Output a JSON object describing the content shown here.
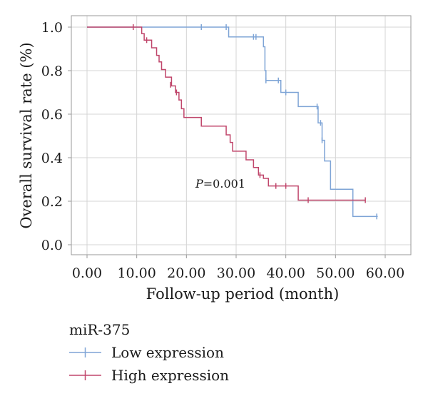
{
  "chart_data": {
    "type": "line",
    "xlabel": "Follow-up period (month)",
    "ylabel": "Overall survival rate (%)",
    "xlim": [
      0,
      60
    ],
    "ylim": [
      0,
      1.0
    ],
    "x_ticks": [
      "0.00",
      "10.00",
      "20.00",
      "30.00",
      "40.00",
      "50.00",
      "60.00"
    ],
    "y_ticks": [
      "0.0",
      "0.2",
      "0.4",
      "0.6",
      "0.8",
      "1.0"
    ],
    "grid": true,
    "annotation": {
      "p_label": "P",
      "p_value": "=0.001"
    },
    "legend": {
      "title": "miR-375",
      "placement": "bottom-left"
    },
    "series": [
      {
        "name": "Low expression",
        "color": "#7ea4d6",
        "steps": [
          [
            0,
            1.0
          ],
          [
            28.5,
            0.955
          ],
          [
            35.5,
            0.91
          ],
          [
            35.8,
            0.8
          ],
          [
            36,
            0.755
          ],
          [
            39,
            0.7
          ],
          [
            42.5,
            0.635
          ],
          [
            46.5,
            0.56
          ],
          [
            47.3,
            0.48
          ],
          [
            47.8,
            0.385
          ],
          [
            49,
            0.255
          ],
          [
            53.5,
            0.13
          ],
          [
            58.5,
            0.13
          ]
        ],
        "censored": [
          [
            23,
            1.0
          ],
          [
            28,
            1.0
          ],
          [
            33.5,
            0.955
          ],
          [
            34,
            0.955
          ],
          [
            36,
            0.755
          ],
          [
            38.5,
            0.755
          ],
          [
            40,
            0.7
          ],
          [
            46.3,
            0.635
          ],
          [
            47,
            0.56
          ],
          [
            47.3,
            0.48
          ],
          [
            58.3,
            0.13
          ]
        ]
      },
      {
        "name": "High expression",
        "color": "#c0466b",
        "steps": [
          [
            0,
            1.0
          ],
          [
            11,
            0.97
          ],
          [
            11.5,
            0.94
          ],
          [
            13,
            0.905
          ],
          [
            14,
            0.87
          ],
          [
            14.5,
            0.84
          ],
          [
            15,
            0.805
          ],
          [
            15.8,
            0.77
          ],
          [
            17,
            0.73
          ],
          [
            17.8,
            0.7
          ],
          [
            18.5,
            0.665
          ],
          [
            19,
            0.625
          ],
          [
            19.5,
            0.585
          ],
          [
            23,
            0.545
          ],
          [
            28,
            0.505
          ],
          [
            28.8,
            0.47
          ],
          [
            29.3,
            0.43
          ],
          [
            32,
            0.39
          ],
          [
            33.5,
            0.355
          ],
          [
            34.5,
            0.32
          ],
          [
            35.5,
            0.305
          ],
          [
            36.5,
            0.27
          ],
          [
            42.5,
            0.205
          ],
          [
            56,
            0.205
          ]
        ],
        "censored": [
          [
            9.3,
            1.0
          ],
          [
            12,
            0.94
          ],
          [
            16.8,
            0.735
          ],
          [
            18,
            0.7
          ],
          [
            34.8,
            0.32
          ],
          [
            38,
            0.27
          ],
          [
            40,
            0.27
          ],
          [
            44.5,
            0.205
          ],
          [
            56,
            0.205
          ]
        ]
      }
    ]
  }
}
